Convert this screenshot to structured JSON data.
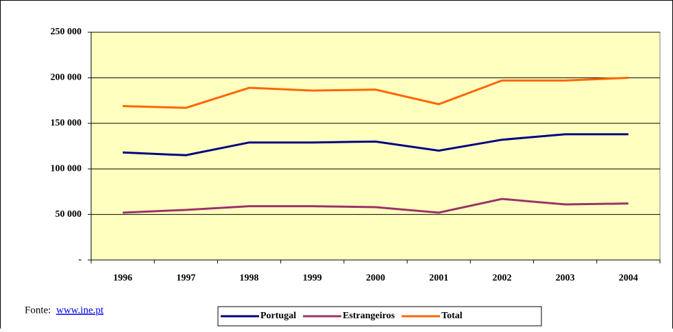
{
  "chart_data": {
    "type": "line",
    "categories": [
      "1996",
      "1997",
      "1998",
      "1999",
      "2000",
      "2001",
      "2002",
      "2003",
      "2004"
    ],
    "series": [
      {
        "name": "Portugal",
        "color": "#000080",
        "values": [
          118000,
          115000,
          129000,
          129000,
          130000,
          120000,
          132000,
          138000,
          138000
        ]
      },
      {
        "name": "Estrangeiros",
        "color": "#993366",
        "values": [
          52000,
          55000,
          59000,
          59000,
          58000,
          52000,
          67000,
          61000,
          62000
        ]
      },
      {
        "name": "Total",
        "color": "#ff6600",
        "values": [
          169000,
          167000,
          189000,
          186000,
          187000,
          171000,
          197000,
          197000,
          200000
        ]
      }
    ],
    "ylim": [
      0,
      250000
    ],
    "yticks": [
      {
        "value": 0,
        "label": "-"
      },
      {
        "value": 50000,
        "label": "50 000"
      },
      {
        "value": 100000,
        "label": "100 000"
      },
      {
        "value": 150000,
        "label": "150 000"
      },
      {
        "value": 200000,
        "label": "200 000"
      },
      {
        "value": 250000,
        "label": "250 000"
      }
    ],
    "grid": true,
    "plot_background": "#ffffc0",
    "legend_position": "bottom",
    "source_label": "Fonte:",
    "source_link": "www.ine.pt"
  }
}
